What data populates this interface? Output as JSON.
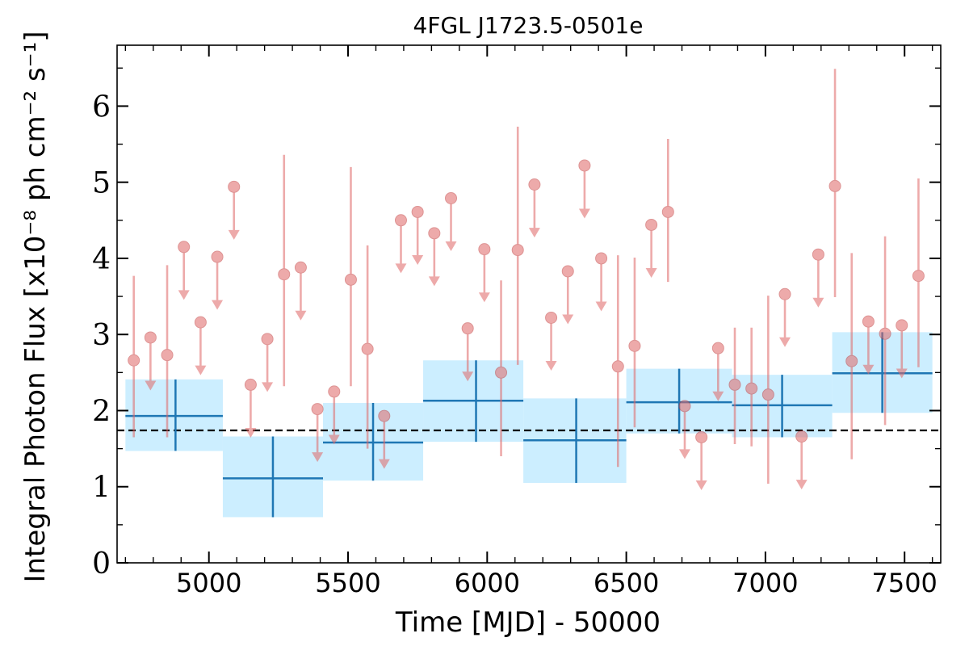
{
  "chart_data": {
    "type": "scatter",
    "title": "4FGL J1723.5-0501e",
    "xlabel": "Time [MJD] - 50000",
    "ylabel": "Integral Photon Flux [x10⁻⁸ ph cm⁻² s⁻¹]",
    "xlim": [
      4670,
      7630
    ],
    "ylim": [
      0,
      6.8
    ],
    "x_ticks": [
      5000,
      5500,
      6000,
      6500,
      7000,
      7500
    ],
    "y_ticks": [
      0,
      1,
      2,
      3,
      4,
      5,
      6
    ],
    "grid": false,
    "average_flux": 1.74,
    "series": [
      {
        "kind": "binned",
        "color": "#1f77b4",
        "fill": "#cceeff",
        "points": [
          {
            "x0": 4700,
            "x1": 5050,
            "xc": 4880,
            "y": 1.93,
            "ylo": 1.47,
            "yhi": 2.41
          },
          {
            "x0": 5050,
            "x1": 5410,
            "xc": 5230,
            "y": 1.11,
            "ylo": 0.6,
            "yhi": 1.66
          },
          {
            "x0": 5410,
            "x1": 5770,
            "xc": 5590,
            "y": 1.58,
            "ylo": 1.08,
            "yhi": 2.1
          },
          {
            "x0": 5770,
            "x1": 6130,
            "xc": 5960,
            "y": 2.13,
            "ylo": 1.59,
            "yhi": 2.66
          },
          {
            "x0": 6130,
            "x1": 6500,
            "xc": 6320,
            "y": 1.61,
            "ylo": 1.05,
            "yhi": 2.16
          },
          {
            "x0": 6500,
            "x1": 6880,
            "xc": 6690,
            "y": 2.11,
            "ylo": 1.7,
            "yhi": 2.55
          },
          {
            "x0": 6880,
            "x1": 7240,
            "xc": 7060,
            "y": 2.07,
            "ylo": 1.65,
            "yhi": 2.47
          },
          {
            "x0": 7240,
            "x1": 7600,
            "xc": 7420,
            "y": 2.49,
            "ylo": 1.97,
            "yhi": 3.03
          }
        ]
      },
      {
        "kind": "fine",
        "color": "#e06666",
        "points": [
          {
            "x": 4730,
            "y": 2.66,
            "ylo": 1.65,
            "yhi": 3.77
          },
          {
            "x": 4790,
            "y": 2.96,
            "ul": true
          },
          {
            "x": 4850,
            "y": 2.73,
            "ylo": 1.65,
            "yhi": 3.91
          },
          {
            "x": 4910,
            "y": 4.15,
            "ul": true
          },
          {
            "x": 4970,
            "y": 3.16,
            "ul": true
          },
          {
            "x": 5030,
            "y": 4.02,
            "ul": true
          },
          {
            "x": 5090,
            "y": 4.94,
            "ul": true
          },
          {
            "x": 5150,
            "y": 2.34,
            "ul": true
          },
          {
            "x": 5210,
            "y": 2.94,
            "ul": true
          },
          {
            "x": 5270,
            "y": 3.79,
            "ylo": 2.32,
            "yhi": 5.36
          },
          {
            "x": 5330,
            "y": 3.88,
            "ul": true
          },
          {
            "x": 5390,
            "y": 2.02,
            "ul": true
          },
          {
            "x": 5450,
            "y": 2.25,
            "ul": true
          },
          {
            "x": 5510,
            "y": 3.72,
            "ylo": 2.32,
            "yhi": 5.2
          },
          {
            "x": 5570,
            "y": 2.81,
            "ylo": 1.5,
            "yhi": 4.17
          },
          {
            "x": 5630,
            "y": 1.93,
            "ul": true
          },
          {
            "x": 5690,
            "y": 4.5,
            "ul": true
          },
          {
            "x": 5750,
            "y": 4.61,
            "ul": true
          },
          {
            "x": 5810,
            "y": 4.33,
            "ul": true
          },
          {
            "x": 5870,
            "y": 4.79,
            "ul": true
          },
          {
            "x": 5930,
            "y": 3.08,
            "ul": true
          },
          {
            "x": 5990,
            "y": 4.12,
            "ul": true
          },
          {
            "x": 6050,
            "y": 2.5,
            "ylo": 1.4,
            "yhi": 3.71
          },
          {
            "x": 6110,
            "y": 4.11,
            "ylo": 2.6,
            "yhi": 5.73
          },
          {
            "x": 6170,
            "y": 4.97,
            "ul": true
          },
          {
            "x": 6230,
            "y": 3.22,
            "ul": true
          },
          {
            "x": 6290,
            "y": 3.83,
            "ul": true
          },
          {
            "x": 6350,
            "y": 5.22,
            "ul": true
          },
          {
            "x": 6410,
            "y": 4.0,
            "ul": true
          },
          {
            "x": 6470,
            "y": 2.58,
            "ylo": 1.26,
            "yhi": 4.04
          },
          {
            "x": 6530,
            "y": 2.85,
            "ylo": 1.78,
            "yhi": 4.01
          },
          {
            "x": 6590,
            "y": 4.44,
            "ul": true
          },
          {
            "x": 6650,
            "y": 4.61,
            "ylo": 3.69,
            "yhi": 5.57
          },
          {
            "x": 6710,
            "y": 2.06,
            "ul": true
          },
          {
            "x": 6770,
            "y": 1.65,
            "ul": true
          },
          {
            "x": 6830,
            "y": 2.82,
            "ul": true
          },
          {
            "x": 6890,
            "y": 2.34,
            "ylo": 1.56,
            "yhi": 3.09
          },
          {
            "x": 6950,
            "y": 2.29,
            "ylo": 1.53,
            "yhi": 3.09
          },
          {
            "x": 7010,
            "y": 2.21,
            "ylo": 1.04,
            "yhi": 3.51
          },
          {
            "x": 7070,
            "y": 3.53,
            "ul": true
          },
          {
            "x": 7130,
            "y": 1.66,
            "ul": true
          },
          {
            "x": 7190,
            "y": 4.05,
            "ul": true
          },
          {
            "x": 7250,
            "y": 4.95,
            "ylo": 3.49,
            "yhi": 6.49
          },
          {
            "x": 7310,
            "y": 2.65,
            "ylo": 1.36,
            "yhi": 4.07
          },
          {
            "x": 7370,
            "y": 3.17,
            "ul": true
          },
          {
            "x": 7430,
            "y": 3.01,
            "ylo": 1.81,
            "yhi": 4.29
          },
          {
            "x": 7490,
            "y": 3.12,
            "ul": true
          },
          {
            "x": 7550,
            "y": 3.77,
            "ylo": 2.57,
            "yhi": 5.05
          }
        ]
      }
    ]
  }
}
